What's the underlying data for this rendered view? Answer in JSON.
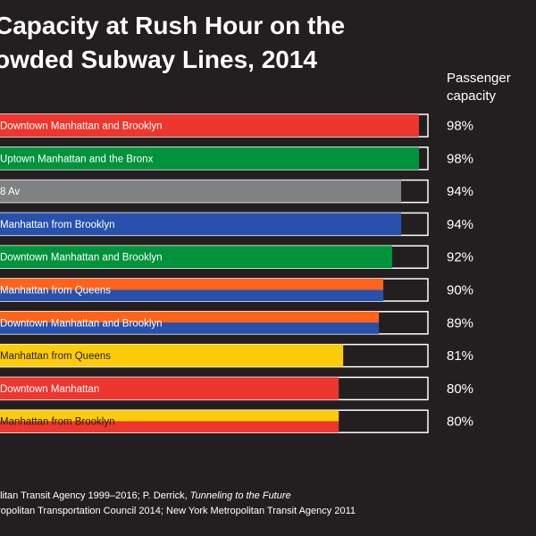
{
  "title_lines": [
    "Capacity at Rush Hour on the",
    "owded Subway Lines, 2014"
  ],
  "column_header_lines": [
    "Passenger",
    "capacity"
  ],
  "footer": {
    "line1_prefix": "olitan Transit Agency 1999–2016; P. Derrick, ",
    "line1_italic": "Tunneling to the Future",
    "line2": "tropolitan Transportation Council 2014; New York Metropolitan Transit Agency 2011"
  },
  "colors": {
    "background": "#231f20",
    "track_fill": "#231f20",
    "track_border": "#ffffff",
    "red": "#ee352e",
    "green": "#00933c",
    "gray": "#808183",
    "blue": "#2850ad",
    "orange": "#ff6319",
    "yellow": "#fccc0a"
  },
  "chart_data": {
    "type": "bar",
    "orientation": "horizontal",
    "value_unit": "%",
    "xlim": [
      0,
      100
    ],
    "bars": [
      {
        "label": "Downtown Manhattan and Brooklyn",
        "value": 98,
        "value_label": "98%",
        "colors": [
          "#ee352e"
        ],
        "label_color": "#ffffff"
      },
      {
        "label": "Uptown Manhattan and the Bronx",
        "value": 98,
        "value_label": "98%",
        "colors": [
          "#00933c"
        ],
        "label_color": "#ffffff"
      },
      {
        "label": "8 Av",
        "value": 94,
        "value_label": "94%",
        "colors": [
          "#808183"
        ],
        "label_color": "#ffffff"
      },
      {
        "label": "Manhattan from Brooklyn",
        "value": 94,
        "value_label": "94%",
        "colors": [
          "#2850ad"
        ],
        "label_color": "#ffffff"
      },
      {
        "label": "Downtown Manhattan and Brooklyn",
        "value": 92,
        "value_label": "92%",
        "colors": [
          "#00933c"
        ],
        "label_color": "#ffffff"
      },
      {
        "label": "Manhattan from Queens",
        "value": 90,
        "value_label": "90%",
        "colors": [
          "#ff6319",
          "#2850ad"
        ],
        "label_color": "#ffffff"
      },
      {
        "label": "Downtown Manhattan and Brooklyn",
        "value": 89,
        "value_label": "89%",
        "colors": [
          "#ff6319",
          "#2850ad"
        ],
        "label_color": "#ffffff"
      },
      {
        "label": "Manhattan from Queens",
        "value": 81,
        "value_label": "81%",
        "colors": [
          "#fccc0a"
        ],
        "label_color": "#231f20"
      },
      {
        "label": "Downtown Manhattan",
        "value": 80,
        "value_label": "80%",
        "colors": [
          "#ee352e"
        ],
        "label_color": "#ffffff"
      },
      {
        "label": "Manhattan from Brooklyn",
        "value": 80,
        "value_label": "80%",
        "colors": [
          "#fccc0a",
          "#ee352e"
        ],
        "label_color": "#231f20"
      }
    ]
  }
}
